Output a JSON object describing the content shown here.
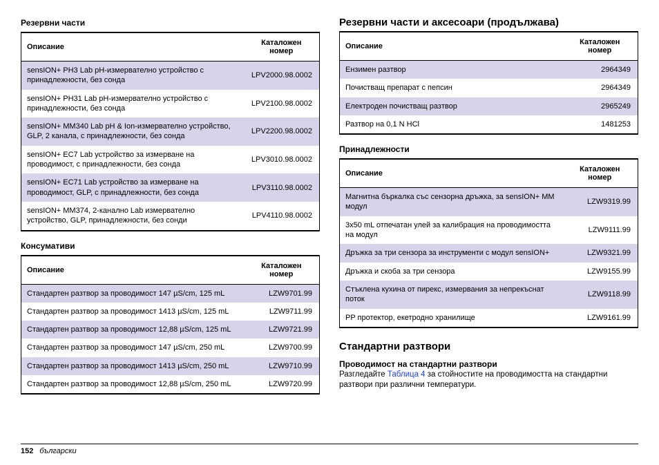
{
  "colors": {
    "row_odd": "#d6d4ea",
    "row_even": "#ffffff",
    "border": "#000000",
    "link": "#1a3fd4",
    "text": "#000000",
    "background": "#ffffff"
  },
  "typography": {
    "base_font": "Arial",
    "base_size_pt": 9,
    "heading_size_pt": 12,
    "subheading_size_pt": 10
  },
  "left": {
    "parts_title": "Резервни части",
    "parts_table": {
      "columns": [
        "Описание",
        "Каталожен номер"
      ],
      "rows": [
        [
          "sensION+ PH3 Lab pH-измервателно устройство с принадлежности, без сонда",
          "LPV2000.98.0002"
        ],
        [
          "sensION+ PH31 Lab pH-измервателно устройство с принадлежности, без сонда",
          "LPV2100.98.0002"
        ],
        [
          "sensION+ MM340 Lab pH & Ion-измервателно устройство, GLP, 2 канала, с принадлежности, без сонда",
          "LPV2200.98.0002"
        ],
        [
          "sensION+ EC7 Lab устройство за измерване на проводимост, с принадлежности, без сонда",
          "LPV3010.98.0002"
        ],
        [
          "sensION+ EC71 Lab устройство за измерване на проводимост, GLP, с принадлежности, без сонда",
          "LPV3110.98.0002"
        ],
        [
          "sensION+ MM374, 2-канално Lab измервателно устройство, GLP, принадлежности, без сонди",
          "LPV4110.98.0002"
        ]
      ]
    },
    "consumables_title": "Консумативи",
    "consumables_table": {
      "columns": [
        "Описание",
        "Каталожен номер"
      ],
      "rows": [
        [
          "Стандартен разтвор за проводимост 147 µS/cm, 125 mL",
          "LZW9701.99"
        ],
        [
          "Стандартен разтвор за проводимост 1413 µS/cm, 125 mL",
          "LZW9711.99"
        ],
        [
          "Стандартен разтвор за проводимост 12,88 µS/cm, 125 mL",
          "LZW9721.99"
        ],
        [
          "Стандартен разтвор за проводимост 147 µS/cm, 250 mL",
          "LZW9700.99"
        ],
        [
          "Стандартен разтвор за проводимост 1413 µS/cm, 250 mL",
          "LZW9710.99"
        ],
        [
          "Стандартен разтвор за проводимост 12,88 µS/cm, 250 mL",
          "LZW9720.99"
        ]
      ]
    }
  },
  "right": {
    "continued_title": "Резервни части и аксесоари (продължава)",
    "continued_table": {
      "columns": [
        "Описание",
        "Каталожен номер"
      ],
      "rows": [
        [
          "Ензимен разтвор",
          "2964349"
        ],
        [
          "Почистващ препарат с пепсин",
          "2964349"
        ],
        [
          "Електроден почистващ разтвор",
          "2965249"
        ],
        [
          "Разтвор на 0,1 N HCl",
          "1481253"
        ]
      ]
    },
    "accessories_title": "Принадлежности",
    "accessories_table": {
      "columns": [
        "Описание",
        "Каталожен номер"
      ],
      "rows": [
        [
          "Магнитна бъркалка със сензорна дръжка, за sensION+ MM модул",
          "LZW9319.99"
        ],
        [
          "3x50 mL отпечатан улей за калибрация на проводимостта на модул",
          "LZW9111.99"
        ],
        [
          "Дръжка за три сензора за инструменти с модул sensION+",
          "LZW9321.99"
        ],
        [
          "Дръжка и скоба за три сензора",
          "LZW9155.99"
        ],
        [
          "Стъклена кухина от пирекс, измервания за непрекъснат поток",
          "LZW9118.99"
        ],
        [
          "PP протектор, екетродно хранилище",
          "LZW9161.99"
        ]
      ]
    },
    "standard_solutions_title": "Стандартни разтвори",
    "conductivity_title": "Проводимост на стандартни разтвори",
    "paragraph_before": "Разгледайте ",
    "paragraph_link": "Таблица 4",
    "paragraph_after": " за стойностите на проводимостта на стандартни разтвори при различни температури."
  },
  "footer": {
    "page_number": "152",
    "language": "български"
  }
}
